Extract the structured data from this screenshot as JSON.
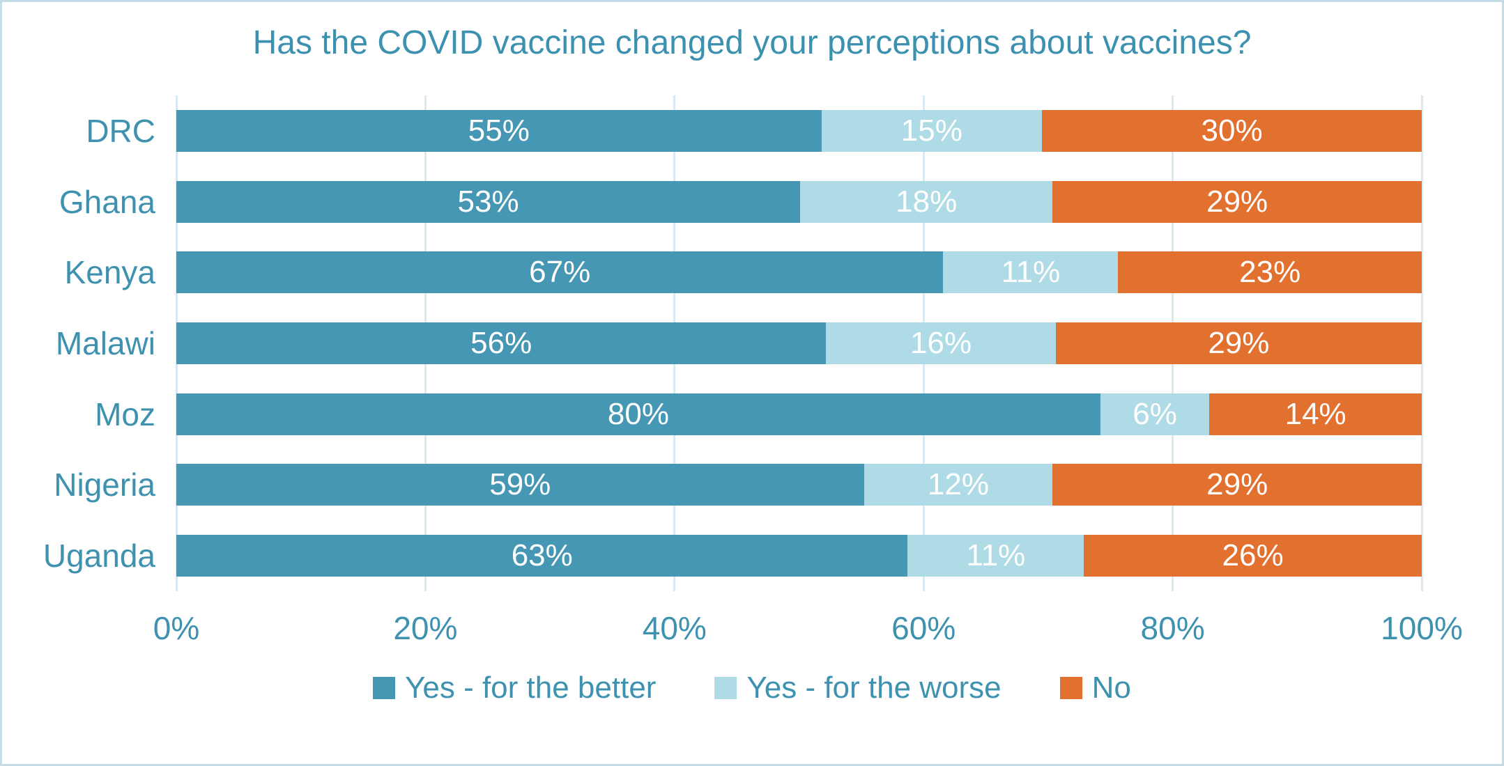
{
  "title": "Has the COVID vaccine changed your perceptions about vaccines?",
  "chart_data": {
    "type": "bar",
    "orientation": "horizontal",
    "stacked": true,
    "title": "Has the COVID vaccine changed your perceptions about vaccines?",
    "categories": [
      "DRC",
      "Ghana",
      "Kenya",
      "Malawi",
      "Moz",
      "Nigeria",
      "Uganda"
    ],
    "series": [
      {
        "name": "Yes - for the better",
        "color": "#4697B4",
        "values": [
          55,
          53,
          67,
          56,
          80,
          59,
          63
        ]
      },
      {
        "name": "Yes - for the worse",
        "color": "#AFDBE7",
        "values": [
          15,
          18,
          11,
          16,
          6,
          12,
          11
        ]
      },
      {
        "name": "No",
        "color": "#E2712F",
        "values": [
          30,
          29,
          23,
          29,
          14,
          29,
          26
        ]
      }
    ],
    "data_label_format": "percent",
    "x_ticks": [
      "0%",
      "20%",
      "40%",
      "60%",
      "80%",
      "100%"
    ],
    "xlim": [
      0,
      100
    ],
    "grid": "vertical",
    "legend_position": "bottom"
  },
  "style": {
    "text_color": "#3E92B0",
    "title_color": "#3B91AF",
    "bar_label_color": "#FFFFFF",
    "grid_color": "#D9E8F1",
    "border_color": "#C5DBE7",
    "background": "#FFFFFF"
  }
}
